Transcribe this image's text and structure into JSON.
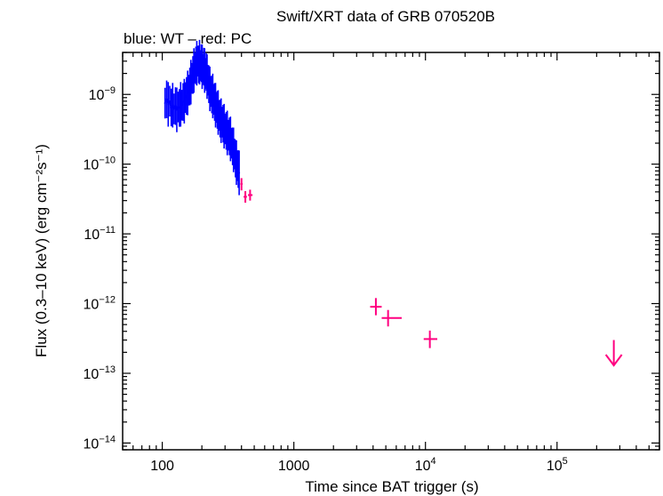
{
  "chart_data": {
    "type": "scatter",
    "title": "Swift/XRT data of GRB 070520B",
    "subtitle": "blue: WT – red: PC",
    "xlabel": "Time since BAT trigger (s)",
    "ylabel": "Flux (0.3–10 keV) (erg cm⁻²s⁻¹)",
    "xscale": "log",
    "yscale": "log",
    "xlim": [
      50,
      600000
    ],
    "ylim": [
      8e-15,
      4e-09
    ],
    "x_ticks": [
      {
        "value": 100,
        "label": "100"
      },
      {
        "value": 1000,
        "label": "1000"
      },
      {
        "value": 10000,
        "base": "10",
        "exp": "4"
      },
      {
        "value": 100000,
        "base": "10",
        "exp": "5"
      }
    ],
    "y_ticks": [
      {
        "value": 1e-09,
        "base": "10",
        "exp": "−9"
      },
      {
        "value": 1e-10,
        "base": "10",
        "exp": "−10"
      },
      {
        "value": 1e-11,
        "base": "10",
        "exp": "−11"
      },
      {
        "value": 1e-12,
        "base": "10",
        "exp": "−12"
      },
      {
        "value": 1e-13,
        "base": "10",
        "exp": "−13"
      },
      {
        "value": 1e-14,
        "base": "10",
        "exp": "−14"
      }
    ],
    "colors": {
      "WT": "#0000ff",
      "PC": "#ff0080"
    },
    "series": [
      {
        "name": "WT",
        "points": [
          [
            105,
            7.5e-10
          ],
          [
            108,
            8.5e-10
          ],
          [
            111,
            7.2e-10
          ],
          [
            114,
            8e-10
          ],
          [
            117,
            6.5e-10
          ],
          [
            120,
            7e-10
          ],
          [
            123,
            6.2e-10
          ],
          [
            126,
            6.8e-10
          ],
          [
            129,
            6e-10
          ],
          [
            132,
            6.6e-10
          ],
          [
            135,
            6.4e-10
          ],
          [
            138,
            7.2e-10
          ],
          [
            141,
            7e-10
          ],
          [
            144,
            7.8e-10
          ],
          [
            147,
            8e-10
          ],
          [
            150,
            9e-10
          ],
          [
            153,
            9.5e-10
          ],
          [
            156,
            1.05e-09
          ],
          [
            159,
            1.15e-09
          ],
          [
            162,
            1.3e-09
          ],
          [
            165,
            1.5e-09
          ],
          [
            168,
            1.7e-09
          ],
          [
            171,
            1.9e-09
          ],
          [
            174,
            2.2e-09
          ],
          [
            177,
            2.4e-09
          ],
          [
            180,
            2.6e-09
          ],
          [
            183,
            2.8e-09
          ],
          [
            186,
            3e-09
          ],
          [
            189,
            2.7e-09
          ],
          [
            192,
            2.9e-09
          ],
          [
            195,
            2.6e-09
          ],
          [
            198,
            2.8e-09
          ],
          [
            201,
            2.5e-09
          ],
          [
            204,
            2.3e-09
          ],
          [
            207,
            2.5e-09
          ],
          [
            210,
            2.2e-09
          ],
          [
            213,
            2e-09
          ],
          [
            216,
            2.1e-09
          ],
          [
            219,
            1.8e-09
          ],
          [
            222,
            1.6e-09
          ],
          [
            226,
            1.4e-09
          ],
          [
            230,
            1.2e-09
          ],
          [
            234,
            1.1e-09
          ],
          [
            238,
            1e-09
          ],
          [
            242,
            9.5e-10
          ],
          [
            246,
            8.5e-10
          ],
          [
            250,
            7.8e-10
          ],
          [
            254,
            7e-10
          ],
          [
            258,
            6.5e-10
          ],
          [
            262,
            6e-10
          ],
          [
            266,
            5.5e-10
          ],
          [
            270,
            5e-10
          ],
          [
            275,
            4.5e-10
          ],
          [
            280,
            4.2e-10
          ],
          [
            285,
            4e-10
          ],
          [
            290,
            3.8e-10
          ],
          [
            295,
            3.5e-10
          ],
          [
            300,
            3.2e-10
          ],
          [
            306,
            3e-10
          ],
          [
            312,
            2.8e-10
          ],
          [
            318,
            2.6e-10
          ],
          [
            324,
            2.5e-10
          ],
          [
            330,
            2.3e-10
          ],
          [
            336,
            2e-10
          ],
          [
            342,
            1.8e-10
          ],
          [
            348,
            1.6e-10
          ],
          [
            354,
            1.4e-10
          ],
          [
            360,
            1.2e-10
          ],
          [
            366,
            1.05e-10
          ],
          [
            372,
            9.5e-11
          ],
          [
            378,
            8.5e-11
          ],
          [
            384,
            7.5e-11
          ]
        ]
      },
      {
        "name": "PC",
        "points": [
          {
            "x": 400,
            "y": 5.2e-11,
            "xlo": 392,
            "xhi": 408,
            "ylo": 4.2e-11,
            "yhi": 6.3e-11
          },
          {
            "x": 428,
            "y": 3.4e-11,
            "xlo": 415,
            "xhi": 440,
            "ylo": 2.8e-11,
            "yhi": 4.1e-11
          },
          {
            "x": 465,
            "y": 3.6e-11,
            "xlo": 448,
            "xhi": 485,
            "ylo": 3e-11,
            "yhi": 4.3e-11
          },
          {
            "x": 4200,
            "y": 9e-13,
            "xlo": 3800,
            "xhi": 4650,
            "ylo": 6.8e-13,
            "yhi": 1.2e-12
          },
          {
            "x": 5200,
            "y": 6.2e-13,
            "xlo": 4650,
            "xhi": 6600,
            "ylo": 4.7e-13,
            "yhi": 8.1e-13
          },
          {
            "x": 10800,
            "y": 3.1e-13,
            "xlo": 9700,
            "xhi": 12300,
            "ylo": 2.3e-13,
            "yhi": 4.1e-13
          }
        ]
      }
    ],
    "upper_limits": [
      {
        "series": "PC",
        "x": 270000,
        "y": 3e-13,
        "to": 1.3e-13
      }
    ]
  }
}
